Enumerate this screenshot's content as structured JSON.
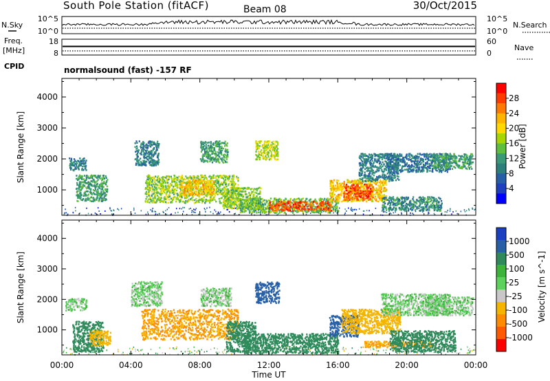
{
  "header": {
    "title": "South Pole Station (fitACF)",
    "beam": "Beam 08",
    "date": "30/Oct/2015"
  },
  "nsky_panel": {
    "left_label": "N.Sky",
    "right_label": "N.Search",
    "left_ticks": [
      "10^5",
      "10^0"
    ],
    "right_ticks": [
      "10^5",
      "10^0"
    ]
  },
  "freq_panel": {
    "left_label_line1": "Freq.",
    "left_label_line2": "[MHz]",
    "right_label": "Nave",
    "left_ticks": [
      "18",
      "8"
    ],
    "right_ticks": [
      "60",
      "0"
    ]
  },
  "cpid": {
    "label": "CPID",
    "text": "normalsound (fast) -157 RF"
  },
  "x_axis": {
    "label": "Time UT",
    "ticks": [
      "00:00",
      "04:00",
      "08:00",
      "12:00",
      "16:00",
      "20:00",
      "00:00"
    ]
  },
  "power_colorbar": {
    "label": "Power [dB]",
    "ticks": [
      "28",
      "24",
      "20",
      "16",
      "12",
      "8",
      "4"
    ],
    "colors": [
      "#ff0000",
      "#ff3c00",
      "#ff7a00",
      "#ffb400",
      "#ffd800",
      "#a8d400",
      "#5fbf3c",
      "#3a9a78",
      "#2c7f7a",
      "#275ea8",
      "#1e3fbf",
      "#0000ff"
    ]
  },
  "velocity_colorbar": {
    "label": "Velocity [m s^-1]",
    "ticks": [
      "1000",
      "500",
      "100",
      "25",
      "-25",
      "-100",
      "-500",
      "-1000"
    ],
    "colors": [
      "#1a3fbf",
      "#2860a8",
      "#2e8a5a",
      "#3cb43c",
      "#5cd25c",
      "#c8c8c8",
      "#f5b400",
      "#ff8c00",
      "#ff5a00",
      "#ff0000"
    ]
  },
  "chart_data": [
    {
      "type": "heatmap",
      "title": "",
      "quantity": "Power",
      "xlabel": "Time UT",
      "ylabel": "Slant Range [km]",
      "xlim": [
        0,
        24
      ],
      "ylim": [
        180,
        4600
      ],
      "yticks": [
        1000,
        2000,
        3000,
        4000
      ],
      "zlim": [
        0,
        32
      ],
      "regions": [
        {
          "t": [
            0.4,
            1.4
          ],
          "r": [
            1650,
            2050
          ],
          "v": 9
        },
        {
          "t": [
            0.8,
            2.6
          ],
          "r": [
            650,
            1500
          ],
          "v": 12
        },
        {
          "t": [
            4.2,
            5.6
          ],
          "r": [
            1800,
            2600
          ],
          "v": 9
        },
        {
          "t": [
            4.8,
            10.2
          ],
          "r": [
            600,
            1500
          ],
          "v": 16
        },
        {
          "t": [
            6.8,
            8.8
          ],
          "r": [
            850,
            1350
          ],
          "v": 22
        },
        {
          "t": [
            8.0,
            9.6
          ],
          "r": [
            1900,
            2600
          ],
          "v": 12
        },
        {
          "t": [
            9.3,
            11.5
          ],
          "r": [
            400,
            1100
          ],
          "v": 16
        },
        {
          "t": [
            11.2,
            12.5
          ],
          "r": [
            2000,
            2600
          ],
          "v": 18
        },
        {
          "t": [
            10.3,
            16.0
          ],
          "r": [
            280,
            750
          ],
          "v": 14
        },
        {
          "t": [
            12.0,
            15.6
          ],
          "r": [
            350,
            650
          ],
          "v": 28
        },
        {
          "t": [
            15.5,
            18.8
          ],
          "r": [
            650,
            1350
          ],
          "v": 22
        },
        {
          "t": [
            16.3,
            18.0
          ],
          "r": [
            700,
            1200
          ],
          "v": 28
        },
        {
          "t": [
            17.2,
            19.5
          ],
          "r": [
            1300,
            2200
          ],
          "v": 9
        },
        {
          "t": [
            18.5,
            22.0
          ],
          "r": [
            350,
            800
          ],
          "v": 10
        },
        {
          "t": [
            18.8,
            22.5
          ],
          "r": [
            1600,
            2200
          ],
          "v": 8
        },
        {
          "t": [
            21.5,
            23.8
          ],
          "r": [
            1700,
            2200
          ],
          "v": 12
        }
      ]
    },
    {
      "type": "heatmap",
      "title": "",
      "quantity": "Velocity",
      "xlabel": "Time UT",
      "ylabel": "Slant Range [km]",
      "xlim": [
        0,
        24
      ],
      "ylim": [
        180,
        4600
      ],
      "yticks": [
        1000,
        2000,
        3000,
        4000
      ],
      "zlim": [
        -1000,
        1000
      ],
      "regions": [
        {
          "t": [
            0.2,
            1.4
          ],
          "r": [
            1650,
            2050
          ],
          "v": 0
        },
        {
          "t": [
            0.6,
            2.4
          ],
          "r": [
            300,
            1300
          ],
          "v": 150
        },
        {
          "t": [
            1.6,
            2.8
          ],
          "r": [
            500,
            1000
          ],
          "v": -150
        },
        {
          "t": [
            4.0,
            5.8
          ],
          "r": [
            1800,
            2600
          ],
          "v": 0
        },
        {
          "t": [
            4.6,
            10.2
          ],
          "r": [
            700,
            1700
          ],
          "v": -200
        },
        {
          "t": [
            8.0,
            9.8
          ],
          "r": [
            1800,
            2400
          ],
          "v": 0
        },
        {
          "t": [
            9.5,
            11.2
          ],
          "r": [
            300,
            1300
          ],
          "v": 150
        },
        {
          "t": [
            11.2,
            12.6
          ],
          "r": [
            1900,
            2600
          ],
          "v": 700
        },
        {
          "t": [
            10.5,
            16.0
          ],
          "r": [
            250,
            900
          ],
          "v": 150
        },
        {
          "t": [
            15.5,
            17.2
          ],
          "r": [
            800,
            1500
          ],
          "v": 700
        },
        {
          "t": [
            16.2,
            19.6
          ],
          "r": [
            900,
            1700
          ],
          "v": -150
        },
        {
          "t": [
            17.5,
            21.5
          ],
          "r": [
            450,
            650
          ],
          "v": -200
        },
        {
          "t": [
            18.5,
            22.5
          ],
          "r": [
            1500,
            2200
          ],
          "v": 0
        },
        {
          "t": [
            21.0,
            23.8
          ],
          "r": [
            1500,
            2100
          ],
          "v": 0
        },
        {
          "t": [
            19.0,
            22.8
          ],
          "r": [
            300,
            1000
          ],
          "v": 150
        }
      ]
    }
  ]
}
